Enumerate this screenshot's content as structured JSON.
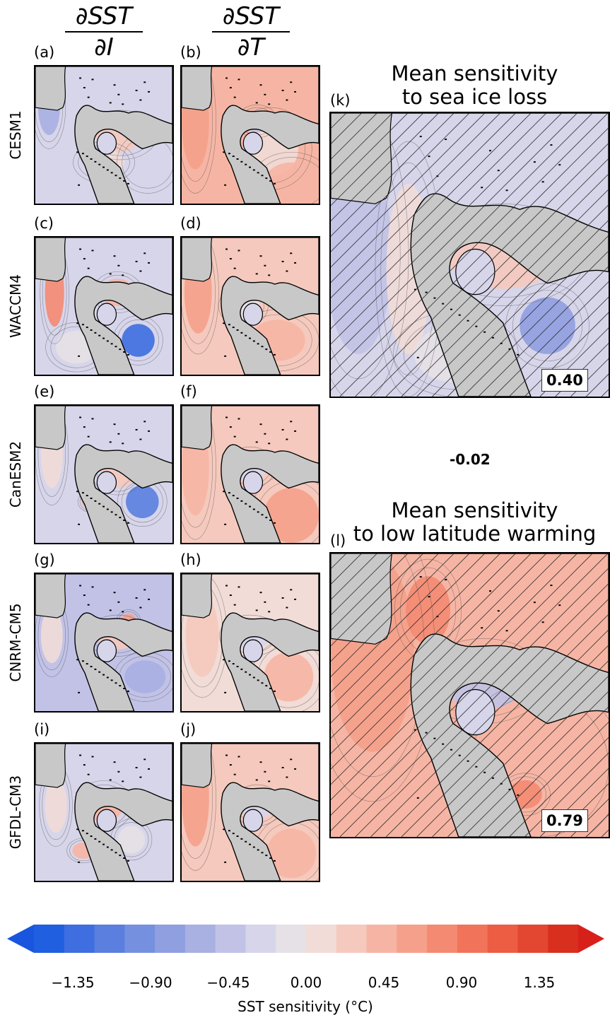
{
  "headers": {
    "col1_numerator": "∂SST",
    "col1_denominator": "∂I",
    "col2_numerator": "∂SST",
    "col2_denominator": "∂T"
  },
  "models": [
    "CESM1",
    "WACCM4",
    "CanESM2",
    "CNRM-CM5",
    "GFDL-CM3"
  ],
  "panel_labels": [
    "(a)",
    "(b)",
    "(c)",
    "(d)",
    "(e)",
    "(f)",
    "(g)",
    "(h)",
    "(i)",
    "(j)",
    "(k)",
    "(l)"
  ],
  "mean_panels": {
    "k_title_line1": "Mean sensitivity",
    "k_title_line2": "to sea ice loss",
    "k_value": "0.40",
    "correlation": "-0.02",
    "l_title_line1": "Mean sensitivity",
    "l_title_line2": "to low latitude warming",
    "l_value": "0.79"
  },
  "chart_data": {
    "type": "heatmap",
    "colorbar": {
      "label": "SST sensitivity (°C)",
      "range": [
        -1.575,
        1.575
      ],
      "step": 0.225,
      "extend": "both",
      "tick_values": [
        -1.35,
        -0.9,
        -0.45,
        0.0,
        0.45,
        0.9,
        1.35
      ],
      "tick_labels": [
        "−1.35",
        "−0.90",
        "−0.45",
        "0.00",
        "0.45",
        "0.90",
        "1.35"
      ],
      "colors": [
        "#1f5fe0",
        "#3e6ee0",
        "#5a7fdf",
        "#7690e0",
        "#909fe0",
        "#a9b0e2",
        "#c1c2e6",
        "#d7d5ea",
        "#e6e1e6",
        "#f1dcd7",
        "#f5c9bd",
        "#f6b5a4",
        "#f5a08b",
        "#f48a72",
        "#f1745a",
        "#ec5d44",
        "#e34631",
        "#d92f1f"
      ],
      "under_color": "#1a55e0",
      "over_color": "#d8201a"
    },
    "mean_sensitivity": {
      "sea_ice_loss": 0.4,
      "low_latitude_warming": 0.79,
      "pattern_correlation": -0.02
    },
    "land_color": "#c8c8c8"
  }
}
